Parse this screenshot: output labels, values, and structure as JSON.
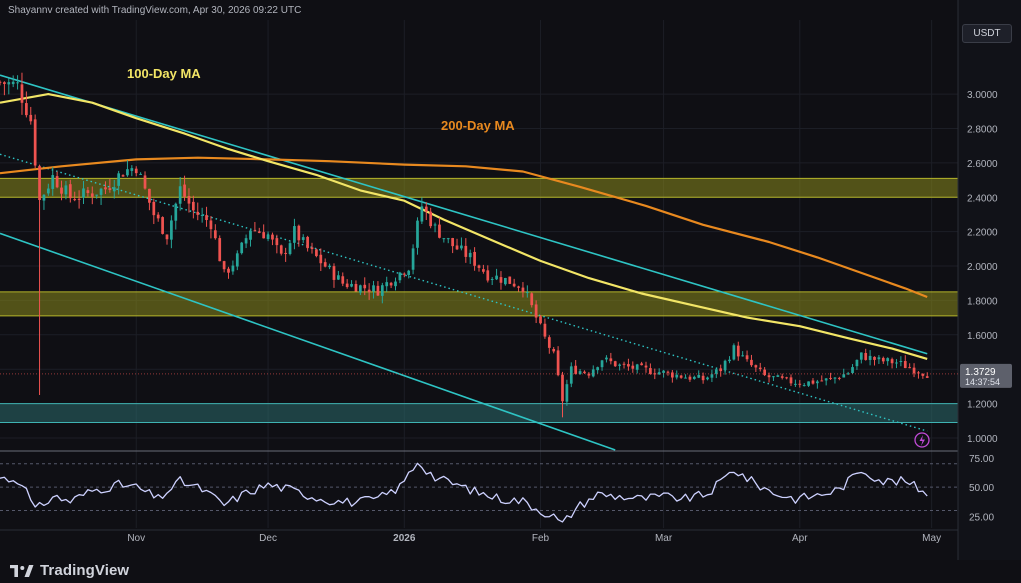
{
  "header": {
    "attribution": "Shayannv created with TradingView.com, Apr 30, 2026 09:22 UTC"
  },
  "brand": {
    "name": "TradingView"
  },
  "price_axis": {
    "currency": "USDT",
    "current_price": "1.3729",
    "countdown": "14:37:54"
  },
  "colors": {
    "background": "#0f0f14",
    "bull": "#26a69a",
    "bear": "#ef5350",
    "ma100": "#f2e566",
    "ma200": "#e8891f",
    "channel": "#2ec4c4",
    "zone_yellow": "#8a8a1c",
    "zone_teal": "#2b6b6b",
    "rsi_line": "#cdd1ff"
  },
  "chart_data": [
    {
      "type": "candlestick",
      "pair": "USDT",
      "ylim": [
        0.93,
        3.21
      ],
      "y_ticks": [
        "3.0000",
        "2.8000",
        "2.6000",
        "2.4000",
        "2.2000",
        "2.0000",
        "1.8000",
        "1.6000",
        "1.4000",
        "1.2000",
        "1.0000"
      ],
      "y_tick_values": [
        3.0,
        2.8,
        2.6,
        2.4,
        2.2,
        2.0,
        1.8,
        1.6,
        1.4,
        1.2,
        1.0
      ],
      "x_ticks": [
        "Nov",
        "Dec",
        "2026",
        "Feb",
        "Mar",
        "Apr",
        "May"
      ],
      "x_tick_dates": [
        "2025-11-01",
        "2025-12-01",
        "2026-01-01",
        "2026-02-01",
        "2026-03-01",
        "2026-04-01",
        "2026-05-01"
      ],
      "xlim": [
        "2025-10-01",
        "2026-05-07"
      ],
      "close_anchors": [
        [
          "2025-10-01",
          3.07
        ],
        [
          "2025-10-05",
          3.05
        ],
        [
          "2025-10-08",
          2.85
        ],
        [
          "2025-10-10",
          2.38
        ],
        [
          "2025-10-13",
          2.52
        ],
        [
          "2025-10-17",
          2.4
        ],
        [
          "2025-10-21",
          2.42
        ],
        [
          "2025-10-25",
          2.45
        ],
        [
          "2025-10-29",
          2.55
        ],
        [
          "2025-11-01",
          2.58
        ],
        [
          "2025-11-05",
          2.3
        ],
        [
          "2025-11-08",
          2.18
        ],
        [
          "2025-11-11",
          2.45
        ],
        [
          "2025-11-14",
          2.32
        ],
        [
          "2025-11-18",
          2.25
        ],
        [
          "2025-11-21",
          1.95
        ],
        [
          "2025-11-24",
          2.05
        ],
        [
          "2025-11-27",
          2.22
        ],
        [
          "2025-12-01",
          2.18
        ],
        [
          "2025-12-04",
          2.05
        ],
        [
          "2025-12-07",
          2.2
        ],
        [
          "2025-12-10",
          2.1
        ],
        [
          "2025-12-14",
          2.0
        ],
        [
          "2025-12-18",
          1.9
        ],
        [
          "2025-12-22",
          1.88
        ],
        [
          "2025-12-26",
          1.86
        ],
        [
          "2025-12-29",
          1.92
        ],
        [
          "2026-01-02",
          2.0
        ],
        [
          "2026-01-05",
          2.35
        ],
        [
          "2026-01-08",
          2.22
        ],
        [
          "2026-01-12",
          2.12
        ],
        [
          "2026-01-16",
          2.05
        ],
        [
          "2026-01-20",
          1.95
        ],
        [
          "2026-01-24",
          1.92
        ],
        [
          "2026-01-28",
          1.88
        ],
        [
          "2026-01-31",
          1.7
        ],
        [
          "2026-02-02",
          1.58
        ],
        [
          "2026-02-04",
          1.48
        ],
        [
          "2026-02-06",
          1.22
        ],
        [
          "2026-02-08",
          1.4
        ],
        [
          "2026-02-12",
          1.38
        ],
        [
          "2026-02-15",
          1.46
        ],
        [
          "2026-02-19",
          1.42
        ],
        [
          "2026-02-24",
          1.4
        ],
        [
          "2026-03-01",
          1.38
        ],
        [
          "2026-03-05",
          1.36
        ],
        [
          "2026-03-10",
          1.34
        ],
        [
          "2026-03-14",
          1.4
        ],
        [
          "2026-03-17",
          1.52
        ],
        [
          "2026-03-20",
          1.44
        ],
        [
          "2026-03-24",
          1.36
        ],
        [
          "2026-03-29",
          1.33
        ],
        [
          "2026-04-02",
          1.32
        ],
        [
          "2026-04-08",
          1.34
        ],
        [
          "2026-04-12",
          1.38
        ],
        [
          "2026-04-15",
          1.48
        ],
        [
          "2026-04-19",
          1.45
        ],
        [
          "2026-04-23",
          1.44
        ],
        [
          "2026-04-27",
          1.4
        ],
        [
          "2026-04-30",
          1.3729
        ]
      ],
      "ma100": [
        [
          "2025-10-01",
          2.95
        ],
        [
          "2025-10-12",
          3.0
        ],
        [
          "2025-10-22",
          2.95
        ],
        [
          "2025-11-01",
          2.86
        ],
        [
          "2025-11-12",
          2.77
        ],
        [
          "2025-11-22",
          2.68
        ],
        [
          "2025-12-01",
          2.61
        ],
        [
          "2025-12-12",
          2.53
        ],
        [
          "2025-12-22",
          2.44
        ],
        [
          "2026-01-01",
          2.38
        ],
        [
          "2026-01-10",
          2.27
        ],
        [
          "2026-01-20",
          2.16
        ],
        [
          "2026-02-01",
          2.03
        ],
        [
          "2026-02-12",
          1.93
        ],
        [
          "2026-02-24",
          1.84
        ],
        [
          "2026-03-08",
          1.77
        ],
        [
          "2026-03-20",
          1.7
        ],
        [
          "2026-04-01",
          1.65
        ],
        [
          "2026-04-12",
          1.58
        ],
        [
          "2026-04-22",
          1.52
        ],
        [
          "2026-04-30",
          1.46
        ]
      ],
      "ma200": [
        [
          "2025-10-01",
          2.54
        ],
        [
          "2025-10-15",
          2.58
        ],
        [
          "2025-11-01",
          2.62
        ],
        [
          "2025-11-15",
          2.63
        ],
        [
          "2025-12-01",
          2.62
        ],
        [
          "2025-12-15",
          2.61
        ],
        [
          "2026-01-01",
          2.59
        ],
        [
          "2026-01-15",
          2.58
        ],
        [
          "2026-01-28",
          2.55
        ],
        [
          "2026-02-10",
          2.46
        ],
        [
          "2026-02-25",
          2.35
        ],
        [
          "2026-03-10",
          2.24
        ],
        [
          "2026-03-25",
          2.14
        ],
        [
          "2026-04-05",
          2.05
        ],
        [
          "2026-04-15",
          1.96
        ],
        [
          "2026-04-25",
          1.87
        ],
        [
          "2026-04-30",
          1.82
        ]
      ],
      "channel_upper": [
        [
          "2025-10-01",
          3.11
        ],
        [
          "2026-04-30",
          1.49
        ]
      ],
      "channel_lower": [
        [
          "2025-10-01",
          2.19
        ],
        [
          "2026-02-18",
          0.93
        ]
      ],
      "dotted_midline": [
        [
          "2025-10-01",
          2.65
        ],
        [
          "2026-04-30",
          1.04
        ]
      ],
      "zones": [
        {
          "from": 2.4,
          "to": 2.51,
          "color": "zone_yellow"
        },
        {
          "from": 1.71,
          "to": 1.85,
          "color": "zone_yellow"
        },
        {
          "from": 1.09,
          "to": 1.2,
          "color": "zone_teal"
        }
      ],
      "annotations": [
        {
          "text": "100-Day MA",
          "color": "ma100"
        },
        {
          "text": "200-Day MA",
          "color": "ma200"
        }
      ]
    },
    {
      "type": "line",
      "name": "",
      "ylim": [
        15,
        80
      ],
      "y_ticks": [
        "75.00",
        "50.00",
        "25.00"
      ],
      "y_tick_values": [
        75,
        50,
        25
      ],
      "guide_levels": [
        70,
        50,
        30
      ],
      "points": [
        [
          "2025-10-01",
          58
        ],
        [
          "2025-10-06",
          55
        ],
        [
          "2025-10-09",
          30
        ],
        [
          "2025-10-13",
          42
        ],
        [
          "2025-10-17",
          38
        ],
        [
          "2025-10-22",
          47
        ],
        [
          "2025-10-28",
          52
        ],
        [
          "2025-11-01",
          50
        ],
        [
          "2025-11-06",
          40
        ],
        [
          "2025-11-11",
          55
        ],
        [
          "2025-11-16",
          48
        ],
        [
          "2025-11-21",
          35
        ],
        [
          "2025-11-26",
          45
        ],
        [
          "2025-12-01",
          52
        ],
        [
          "2025-12-06",
          48
        ],
        [
          "2025-12-11",
          42
        ],
        [
          "2025-12-16",
          38
        ],
        [
          "2025-12-21",
          37
        ],
        [
          "2025-12-26",
          40
        ],
        [
          "2025-12-31",
          50
        ],
        [
          "2026-01-04",
          72
        ],
        [
          "2026-01-08",
          58
        ],
        [
          "2026-01-13",
          52
        ],
        [
          "2026-01-18",
          45
        ],
        [
          "2026-01-23",
          40
        ],
        [
          "2026-01-28",
          38
        ],
        [
          "2026-02-01",
          30
        ],
        [
          "2026-02-04",
          25
        ],
        [
          "2026-02-06",
          18
        ],
        [
          "2026-02-09",
          32
        ],
        [
          "2026-02-14",
          44
        ],
        [
          "2026-02-19",
          42
        ],
        [
          "2026-02-24",
          40
        ],
        [
          "2026-03-01",
          42
        ],
        [
          "2026-03-06",
          40
        ],
        [
          "2026-03-11",
          44
        ],
        [
          "2026-03-17",
          65
        ],
        [
          "2026-03-21",
          55
        ],
        [
          "2026-03-26",
          45
        ],
        [
          "2026-03-31",
          40
        ],
        [
          "2026-04-05",
          43
        ],
        [
          "2026-04-10",
          48
        ],
        [
          "2026-04-15",
          65
        ],
        [
          "2026-04-20",
          55
        ],
        [
          "2026-04-25",
          55
        ],
        [
          "2026-04-30",
          45
        ]
      ]
    }
  ]
}
